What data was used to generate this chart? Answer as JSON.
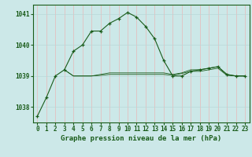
{
  "title": "Graphe pression niveau de la mer (hPa)",
  "background_color": "#cce8e8",
  "grid_color_v": "#e8b8b8",
  "grid_color_h": "#b8d8d8",
  "line_color": "#1a5c1a",
  "xlim": [
    -0.5,
    23.5
  ],
  "ylim": [
    1037.5,
    1041.3
  ],
  "yticks": [
    1038,
    1039,
    1040,
    1041
  ],
  "xticks": [
    0,
    1,
    2,
    3,
    4,
    5,
    6,
    7,
    8,
    9,
    10,
    11,
    12,
    13,
    14,
    15,
    16,
    17,
    18,
    19,
    20,
    21,
    22,
    23
  ],
  "series1_x": [
    0,
    1,
    2,
    3,
    4,
    5,
    6,
    7,
    8,
    9,
    10,
    11,
    12,
    13,
    14,
    15,
    16,
    17,
    18,
    19,
    20,
    21,
    22,
    23
  ],
  "series1_y": [
    1037.7,
    1038.3,
    1039.0,
    1039.2,
    1039.8,
    1040.0,
    1040.45,
    1040.45,
    1040.7,
    1040.85,
    1041.05,
    1040.9,
    1040.6,
    1040.2,
    1039.5,
    1039.0,
    1039.0,
    1039.15,
    1039.2,
    1039.25,
    1039.3,
    1039.05,
    1039.0,
    1039.0
  ],
  "series2_x": [
    3,
    4,
    5,
    6,
    7,
    8,
    9,
    10,
    11,
    12,
    13,
    14,
    15,
    16,
    17,
    18,
    19,
    20,
    21,
    22,
    23
  ],
  "series2_y": [
    1039.2,
    1039.0,
    1039.0,
    1039.0,
    1039.05,
    1039.1,
    1039.1,
    1039.1,
    1039.1,
    1039.1,
    1039.1,
    1039.1,
    1039.05,
    1039.1,
    1039.2,
    1039.2,
    1039.25,
    1039.3,
    1039.05,
    1039.0,
    1039.0
  ],
  "series3_x": [
    3,
    4,
    5,
    6,
    7,
    8,
    9,
    10,
    11,
    12,
    13,
    14,
    15,
    16,
    17,
    18,
    19,
    20,
    21,
    22,
    23
  ],
  "series3_y": [
    1039.2,
    1039.0,
    1039.0,
    1039.0,
    1039.02,
    1039.05,
    1039.05,
    1039.05,
    1039.05,
    1039.05,
    1039.05,
    1039.05,
    1039.02,
    1039.08,
    1039.15,
    1039.15,
    1039.2,
    1039.25,
    1039.02,
    1039.0,
    1039.0
  ],
  "tick_fontsize": 5.5,
  "title_fontsize": 6.5
}
